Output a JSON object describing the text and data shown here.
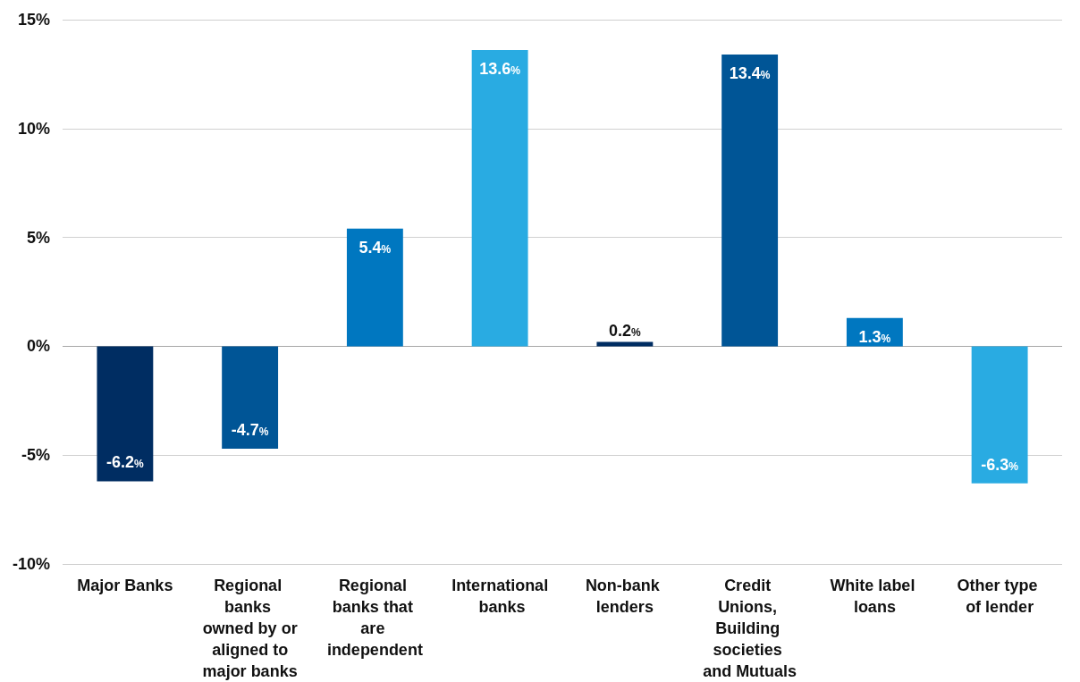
{
  "chart_data": {
    "type": "bar",
    "categories": [
      "Major Banks",
      "Regional banks owned by or aligned to major banks",
      "Regional banks that are independent",
      "International banks",
      "Non-bank lenders",
      "Credit Unions, Building societies and Mutuals",
      "White label loans",
      "Other type of lender"
    ],
    "values": [
      -6.2,
      -4.7,
      5.4,
      13.6,
      0.2,
      13.4,
      1.3,
      -6.3
    ],
    "colors": [
      "#002d62",
      "#005596",
      "#0077c0",
      "#29abe2",
      "#002d62",
      "#005596",
      "#0077c0",
      "#29abe2"
    ],
    "value_labels": [
      "-6.2%",
      "-4.7%",
      "5.4%",
      "13.6%",
      "0.2%",
      "13.4%",
      "1.3%",
      "-6.3%"
    ],
    "ylim": [
      -10,
      15
    ],
    "yticks": [
      {
        "value": -10,
        "label": "-10%"
      },
      {
        "value": -5,
        "label": "-5%"
      },
      {
        "value": 0,
        "label": "0%"
      },
      {
        "value": 5,
        "label": "5%"
      },
      {
        "value": 10,
        "label": "10%"
      },
      {
        "value": 15,
        "label": "15%"
      }
    ],
    "grid": "y"
  }
}
